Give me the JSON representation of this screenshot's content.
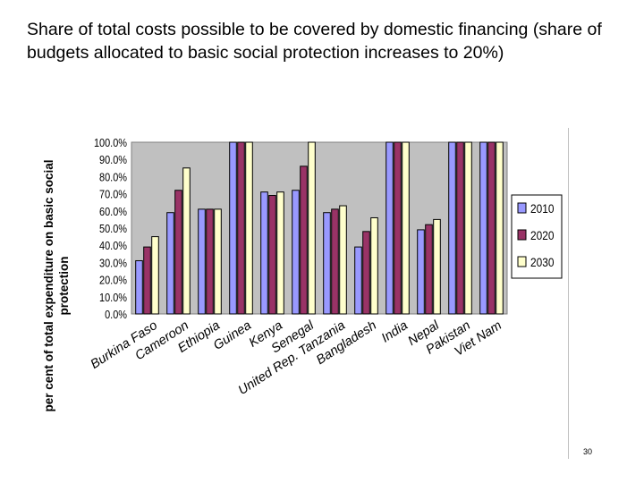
{
  "slide": {
    "title": "Share of total costs possible to be covered by domestic financing (share of budgets allocated to basic social protection increases to 20%)",
    "page_number": "30"
  },
  "colors": {
    "series_2010": "#9999ff",
    "series_2020": "#993366",
    "series_2030": "#ffffcc",
    "plot_bg": "#c0c0c0"
  },
  "chart_data": {
    "type": "bar",
    "title": "",
    "xlabel": "",
    "ylabel": "per cent of total expenditure on basic social protection",
    "ylim": [
      0,
      100
    ],
    "yticks": [
      "100.0%",
      "90.0%",
      "80.0%",
      "70.0%",
      "60.0%",
      "50.0%",
      "40.0%",
      "30.0%",
      "20.0%",
      "10.0%",
      "0.0%"
    ],
    "categories": [
      "Burkina Faso",
      "Cameroon",
      "Ethiopia",
      "Guinea",
      "Kenya",
      "Senegal",
      "United Rep. Tanzania",
      "Bangladesh",
      "India",
      "Nepal",
      "Pakistan",
      "Viet Nam"
    ],
    "series": [
      {
        "name": "2010",
        "values": [
          31,
          59,
          61,
          100,
          71,
          72,
          59,
          39,
          100,
          49,
          100,
          100
        ]
      },
      {
        "name": "2020",
        "values": [
          39,
          72,
          61,
          100,
          69,
          86,
          61,
          48,
          100,
          52,
          100,
          100
        ]
      },
      {
        "name": "2030",
        "values": [
          45,
          85,
          61,
          100,
          71,
          100,
          63,
          56,
          100,
          55,
          100,
          100
        ]
      }
    ],
    "legend_position": "right",
    "grid": false
  }
}
